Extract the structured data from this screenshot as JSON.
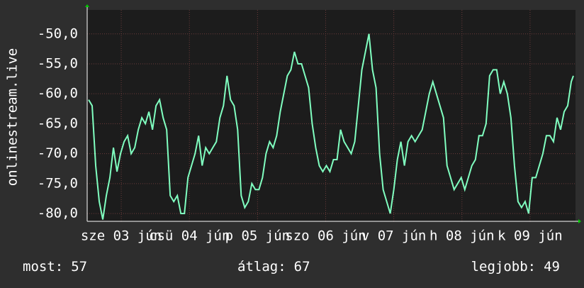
{
  "chart_data": {
    "type": "line",
    "ylabel": "onlinestream.live",
    "xlim": [
      0,
      172
    ],
    "ylim": [
      -81.3,
      -46
    ],
    "yticks": [
      {
        "value": -50,
        "label": "-50,0"
      },
      {
        "value": -55,
        "label": "-55,0"
      },
      {
        "value": -60,
        "label": "-60,0"
      },
      {
        "value": -65,
        "label": "-65,0"
      },
      {
        "value": -70,
        "label": "-70,0"
      },
      {
        "value": -75,
        "label": "-75,0"
      },
      {
        "value": -80,
        "label": "-80,0"
      }
    ],
    "xticks": [
      {
        "value": 12,
        "label": "sze 03 jún"
      },
      {
        "value": 36,
        "label": "csü 04 jún"
      },
      {
        "value": 60,
        "label": "p 05 jún"
      },
      {
        "value": 84,
        "label": "szo 06 jún"
      },
      {
        "value": 108,
        "label": "v 07 jún"
      },
      {
        "value": 132,
        "label": "h 08 jún"
      },
      {
        "value": 156,
        "label": "k 09 jún"
      }
    ],
    "grid": true,
    "series": [
      {
        "color": "#80ffc0",
        "x": [
          0.5,
          1.75,
          3,
          4.25,
          5.5,
          6.75,
          8,
          9.25,
          10.5,
          11.75,
          13,
          14.25,
          15.5,
          16.75,
          18,
          19.25,
          20.5,
          21.75,
          23,
          24.25,
          25.5,
          26.75,
          28,
          29.25,
          30.5,
          31.75,
          33,
          34.25,
          35.5,
          36.75,
          38,
          39.25,
          40.5,
          41.75,
          43,
          44.25,
          45.5,
          46.75,
          48,
          49.25,
          50.5,
          51.75,
          53,
          54.25,
          55.5,
          56.75,
          58,
          59.25,
          60.5,
          61.75,
          63,
          64.25,
          65.5,
          66.75,
          68,
          69.25,
          70.5,
          71.75,
          73,
          74.25,
          75.5,
          76.75,
          78,
          79.25,
          80.5,
          81.75,
          83,
          84.25,
          85.5,
          86.75,
          88,
          89.25,
          90.5,
          91.75,
          93,
          94.25,
          95.5,
          96.75,
          98,
          99.25,
          100.5,
          101.75,
          103,
          104.25,
          105.5,
          106.75,
          108,
          109.25,
          110.5,
          111.75,
          113,
          114.25,
          115.5,
          116.75,
          118,
          119.25,
          120.5,
          121.75,
          123,
          124.25,
          125.5,
          126.75,
          128,
          129.25,
          130.5,
          131.75,
          133,
          134.25,
          135.5,
          136.75,
          138,
          139.25,
          140.5,
          141.75,
          143,
          144.25,
          145.5,
          146.75,
          148,
          149.25,
          150.5,
          151.75,
          153,
          154.25,
          155.5,
          156.75,
          158,
          159.25,
          160.5,
          161.75,
          163,
          164.25,
          165.5,
          166.75,
          168,
          169.25,
          170.5,
          171.25
        ],
        "values": [
          -61,
          -62,
          -72,
          -78,
          -81,
          -77,
          -74,
          -69,
          -73,
          -70,
          -68,
          -67,
          -70,
          -69,
          -66,
          -64,
          -65,
          -63,
          -66,
          -62,
          -61,
          -64,
          -66,
          -77,
          -78,
          -77,
          -80,
          -80,
          -74,
          -72,
          -70,
          -67,
          -72,
          -69,
          -70,
          -69,
          -68,
          -64,
          -62,
          -57,
          -61,
          -62,
          -66,
          -77,
          -79,
          -78,
          -75,
          -76,
          -76,
          -74,
          -70,
          -68,
          -69,
          -67,
          -63,
          -60,
          -57,
          -56,
          -53,
          -55,
          -55,
          -57,
          -59,
          -65,
          -69,
          -72,
          -73,
          -72,
          -73,
          -71,
          -71,
          -66,
          -68,
          -69,
          -70,
          -68,
          -62,
          -56,
          -53,
          -50,
          -56,
          -59,
          -70,
          -76,
          -78,
          -80,
          -76,
          -71,
          -68,
          -72,
          -68,
          -67,
          -68,
          -67,
          -66,
          -63,
          -60,
          -58,
          -60,
          -62,
          -64,
          -72,
          -74,
          -76,
          -75,
          -74,
          -76,
          -74,
          -72,
          -71,
          -67,
          -67,
          -65,
          -57,
          -56,
          -56,
          -60,
          -58,
          -60,
          -64,
          -72,
          -78,
          -79,
          -78,
          -80,
          -74,
          -74,
          -72,
          -70,
          -67,
          -67,
          -68,
          -64,
          -66,
          -63,
          -62,
          -58,
          -57
        ]
      }
    ],
    "stats": [
      {
        "label": "most:",
        "value": 57
      },
      {
        "label": "átlag:",
        "value": 67
      },
      {
        "label": "legjobb:",
        "value": 49
      }
    ]
  }
}
